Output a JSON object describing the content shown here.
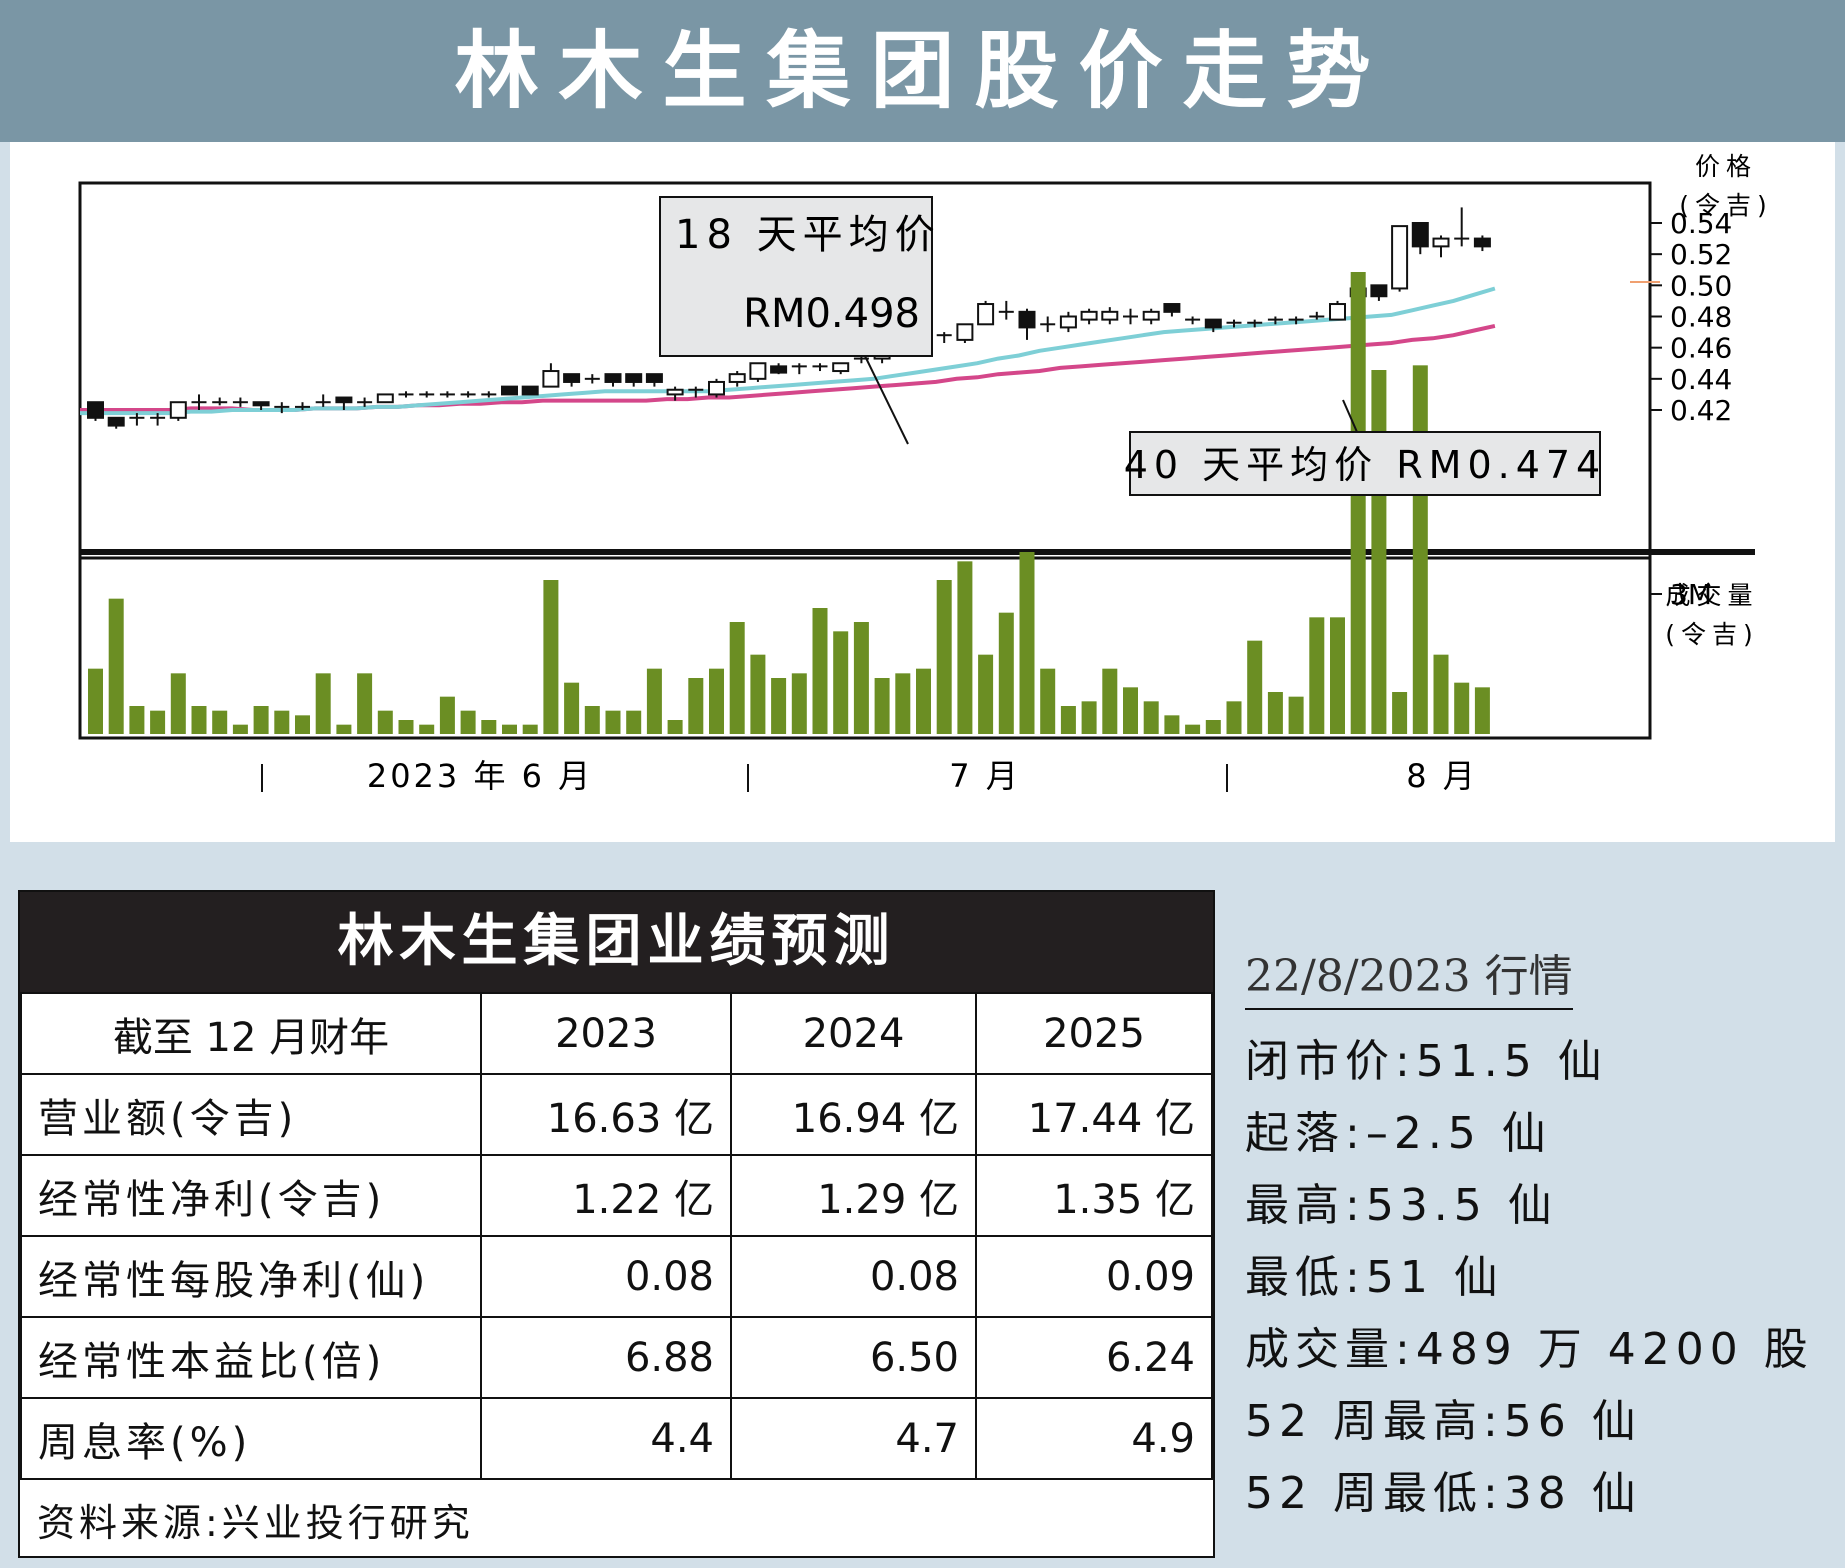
{
  "title": "林木生集团股价走势",
  "chart_data": {
    "type": "candlestick",
    "price_axis": {
      "label_line1": "价格",
      "label_line2": "(令吉)",
      "ticks": [
        "0.54",
        "0.52",
        "0.50",
        "0.48",
        "0.46",
        "0.44",
        "0.42"
      ],
      "ylim": [
        0.4,
        0.56
      ]
    },
    "volume_axis": {
      "label_line1": "成交量",
      "label_line2": "(令吉)",
      "ticks": [
        "3M"
      ]
    },
    "months": [
      "2023 年 6 月",
      "7 月",
      "8 月"
    ],
    "ma18": {
      "label_line1": "18 天平均价",
      "label_line2": "RM0.498"
    },
    "ma40": {
      "label": "40 天平均价 RM0.474"
    },
    "candles": [
      {
        "o": 0.425,
        "c": 0.415,
        "h": 0.425,
        "l": 0.413
      },
      {
        "o": 0.415,
        "c": 0.41,
        "h": 0.415,
        "l": 0.408
      },
      {
        "o": 0.415,
        "c": 0.415,
        "h": 0.418,
        "l": 0.41
      },
      {
        "o": 0.415,
        "c": 0.415,
        "h": 0.418,
        "l": 0.41
      },
      {
        "o": 0.415,
        "c": 0.425,
        "h": 0.425,
        "l": 0.413
      },
      {
        "o": 0.425,
        "c": 0.425,
        "h": 0.43,
        "l": 0.42
      },
      {
        "o": 0.425,
        "c": 0.425,
        "h": 0.428,
        "l": 0.423
      },
      {
        "o": 0.425,
        "c": 0.425,
        "h": 0.428,
        "l": 0.422
      },
      {
        "o": 0.425,
        "c": 0.423,
        "h": 0.425,
        "l": 0.42
      },
      {
        "o": 0.422,
        "c": 0.422,
        "h": 0.425,
        "l": 0.418
      },
      {
        "o": 0.422,
        "c": 0.422,
        "h": 0.425,
        "l": 0.42
      },
      {
        "o": 0.425,
        "c": 0.425,
        "h": 0.43,
        "l": 0.422
      },
      {
        "o": 0.428,
        "c": 0.425,
        "h": 0.428,
        "l": 0.42
      },
      {
        "o": 0.425,
        "c": 0.425,
        "h": 0.428,
        "l": 0.422
      },
      {
        "o": 0.425,
        "c": 0.43,
        "h": 0.43,
        "l": 0.425
      },
      {
        "o": 0.43,
        "c": 0.43,
        "h": 0.432,
        "l": 0.428
      },
      {
        "o": 0.43,
        "c": 0.43,
        "h": 0.432,
        "l": 0.428
      },
      {
        "o": 0.43,
        "c": 0.43,
        "h": 0.432,
        "l": 0.428
      },
      {
        "o": 0.43,
        "c": 0.43,
        "h": 0.432,
        "l": 0.428
      },
      {
        "o": 0.43,
        "c": 0.43,
        "h": 0.432,
        "l": 0.428
      },
      {
        "o": 0.435,
        "c": 0.43,
        "h": 0.435,
        "l": 0.43
      },
      {
        "o": 0.435,
        "c": 0.43,
        "h": 0.435,
        "l": 0.43
      },
      {
        "o": 0.435,
        "c": 0.445,
        "h": 0.45,
        "l": 0.435
      },
      {
        "o": 0.443,
        "c": 0.438,
        "h": 0.443,
        "l": 0.435
      },
      {
        "o": 0.44,
        "c": 0.44,
        "h": 0.443,
        "l": 0.437
      },
      {
        "o": 0.443,
        "c": 0.438,
        "h": 0.443,
        "l": 0.435
      },
      {
        "o": 0.443,
        "c": 0.438,
        "h": 0.443,
        "l": 0.435
      },
      {
        "o": 0.443,
        "c": 0.438,
        "h": 0.443,
        "l": 0.435
      },
      {
        "o": 0.43,
        "c": 0.433,
        "h": 0.435,
        "l": 0.426
      },
      {
        "o": 0.433,
        "c": 0.433,
        "h": 0.435,
        "l": 0.428
      },
      {
        "o": 0.43,
        "c": 0.438,
        "h": 0.44,
        "l": 0.428
      },
      {
        "o": 0.438,
        "c": 0.443,
        "h": 0.445,
        "l": 0.435
      },
      {
        "o": 0.44,
        "c": 0.45,
        "h": 0.45,
        "l": 0.438
      },
      {
        "o": 0.448,
        "c": 0.444,
        "h": 0.45,
        "l": 0.443
      },
      {
        "o": 0.448,
        "c": 0.448,
        "h": 0.45,
        "l": 0.443
      },
      {
        "o": 0.448,
        "c": 0.448,
        "h": 0.45,
        "l": 0.445
      },
      {
        "o": 0.445,
        "c": 0.45,
        "h": 0.45,
        "l": 0.443
      },
      {
        "o": 0.453,
        "c": 0.453,
        "h": 0.458,
        "l": 0.45
      },
      {
        "o": 0.453,
        "c": 0.458,
        "h": 0.46,
        "l": 0.45
      },
      {
        "o": 0.458,
        "c": 0.465,
        "h": 0.468,
        "l": 0.455
      },
      {
        "o": 0.468,
        "c": 0.468,
        "h": 0.47,
        "l": 0.463
      },
      {
        "o": 0.468,
        "c": 0.468,
        "h": 0.47,
        "l": 0.463
      },
      {
        "o": 0.465,
        "c": 0.475,
        "h": 0.475,
        "l": 0.463
      },
      {
        "o": 0.475,
        "c": 0.488,
        "h": 0.49,
        "l": 0.475
      },
      {
        "o": 0.483,
        "c": 0.483,
        "h": 0.49,
        "l": 0.478
      },
      {
        "o": 0.483,
        "c": 0.473,
        "h": 0.485,
        "l": 0.465
      },
      {
        "o": 0.475,
        "c": 0.475,
        "h": 0.48,
        "l": 0.47
      },
      {
        "o": 0.473,
        "c": 0.48,
        "h": 0.483,
        "l": 0.47
      },
      {
        "o": 0.478,
        "c": 0.483,
        "h": 0.485,
        "l": 0.475
      },
      {
        "o": 0.478,
        "c": 0.483,
        "h": 0.486,
        "l": 0.475
      },
      {
        "o": 0.48,
        "c": 0.48,
        "h": 0.485,
        "l": 0.475
      },
      {
        "o": 0.478,
        "c": 0.483,
        "h": 0.485,
        "l": 0.475
      },
      {
        "o": 0.488,
        "c": 0.483,
        "h": 0.488,
        "l": 0.48
      },
      {
        "o": 0.478,
        "c": 0.478,
        "h": 0.48,
        "l": 0.475
      },
      {
        "o": 0.478,
        "c": 0.473,
        "h": 0.478,
        "l": 0.47
      },
      {
        "o": 0.476,
        "c": 0.476,
        "h": 0.478,
        "l": 0.473
      },
      {
        "o": 0.476,
        "c": 0.476,
        "h": 0.478,
        "l": 0.473
      },
      {
        "o": 0.478,
        "c": 0.478,
        "h": 0.48,
        "l": 0.475
      },
      {
        "o": 0.478,
        "c": 0.478,
        "h": 0.48,
        "l": 0.475
      },
      {
        "o": 0.48,
        "c": 0.48,
        "h": 0.483,
        "l": 0.478
      },
      {
        "o": 0.478,
        "c": 0.488,
        "h": 0.49,
        "l": 0.478
      },
      {
        "o": 0.493,
        "c": 0.498,
        "h": 0.5,
        "l": 0.49
      },
      {
        "o": 0.5,
        "c": 0.493,
        "h": 0.5,
        "l": 0.49
      },
      {
        "o": 0.498,
        "c": 0.538,
        "h": 0.538,
        "l": 0.496
      },
      {
        "o": 0.54,
        "c": 0.525,
        "h": 0.54,
        "l": 0.52
      },
      {
        "o": 0.525,
        "c": 0.53,
        "h": 0.532,
        "l": 0.518
      },
      {
        "o": 0.53,
        "c": 0.53,
        "h": 0.55,
        "l": 0.525
      },
      {
        "o": 0.53,
        "c": 0.525,
        "h": 0.532,
        "l": 0.522
      }
    ],
    "ma18_values": [
      0.418,
      0.418,
      0.418,
      0.418,
      0.419,
      0.419,
      0.42,
      0.42,
      0.42,
      0.42,
      0.421,
      0.421,
      0.421,
      0.422,
      0.422,
      0.423,
      0.424,
      0.425,
      0.426,
      0.427,
      0.428,
      0.429,
      0.43,
      0.431,
      0.432,
      0.432,
      0.432,
      0.432,
      0.432,
      0.432,
      0.433,
      0.434,
      0.435,
      0.436,
      0.437,
      0.438,
      0.439,
      0.44,
      0.442,
      0.444,
      0.446,
      0.448,
      0.45,
      0.453,
      0.455,
      0.458,
      0.46,
      0.462,
      0.464,
      0.466,
      0.468,
      0.47,
      0.471,
      0.472,
      0.473,
      0.474,
      0.475,
      0.476,
      0.477,
      0.478,
      0.479,
      0.48,
      0.481,
      0.484,
      0.487,
      0.49,
      0.494,
      0.498
    ],
    "ma40_values": [
      0.42,
      0.42,
      0.42,
      0.42,
      0.421,
      0.421,
      0.421,
      0.42,
      0.42,
      0.42,
      0.421,
      0.421,
      0.421,
      0.422,
      0.422,
      0.423,
      0.423,
      0.424,
      0.424,
      0.425,
      0.425,
      0.426,
      0.426,
      0.426,
      0.426,
      0.426,
      0.426,
      0.427,
      0.427,
      0.428,
      0.428,
      0.429,
      0.43,
      0.431,
      0.432,
      0.433,
      0.434,
      0.435,
      0.436,
      0.437,
      0.438,
      0.44,
      0.441,
      0.443,
      0.444,
      0.445,
      0.447,
      0.448,
      0.449,
      0.45,
      0.451,
      0.452,
      0.453,
      0.454,
      0.455,
      0.456,
      0.457,
      0.458,
      0.459,
      0.46,
      0.461,
      0.462,
      0.463,
      0.465,
      0.466,
      0.468,
      0.471,
      0.474
    ],
    "volume_values": [
      1.4,
      2.9,
      0.6,
      0.5,
      1.3,
      0.6,
      0.5,
      0.2,
      0.6,
      0.5,
      0.4,
      1.3,
      0.2,
      1.3,
      0.5,
      0.3,
      0.2,
      0.8,
      0.5,
      0.3,
      0.2,
      0.2,
      3.3,
      1.1,
      0.6,
      0.5,
      0.5,
      1.4,
      0.3,
      1.2,
      1.4,
      2.4,
      1.7,
      1.2,
      1.3,
      2.7,
      2.2,
      2.4,
      1.2,
      1.3,
      1.4,
      3.3,
      3.7,
      1.7,
      2.6,
      3.9,
      1.4,
      0.6,
      0.7,
      1.4,
      1.0,
      0.7,
      0.4,
      0.2,
      0.3,
      0.7,
      2.0,
      0.9,
      0.8,
      2.5,
      2.5,
      9.9,
      7.8,
      0.9,
      7.9,
      1.7,
      1.1,
      1.0
    ]
  },
  "forecast": {
    "title": "林木生集团业绩预测",
    "header": [
      "截至 12 月财年",
      "2023",
      "2024",
      "2025"
    ],
    "rows": [
      [
        "营业额(令吉)",
        "16.63 亿",
        "16.94 亿",
        "17.44 亿"
      ],
      [
        "经常性净利(令吉)",
        "1.22 亿",
        "1.29 亿",
        "1.35 亿"
      ],
      [
        "经常性每股净利(仙)",
        "0.08",
        "0.08",
        "0.09"
      ],
      [
        "经常性本益比(倍)",
        "6.88",
        "6.50",
        "6.24"
      ],
      [
        "周息率(%)",
        "4.4",
        "4.7",
        "4.9"
      ]
    ],
    "source": "资料来源:兴业投行研究"
  },
  "market": {
    "date": "22/8/2023 行情",
    "rows": [
      "闭市价:51.5 仙",
      "起落:–2.5 仙",
      "最高:53.5 仙",
      "最低:51 仙",
      "成交量:489 万 4200 股",
      "52 周最高:56 仙",
      "52 周最低:38 仙"
    ]
  },
  "colors": {
    "title_bg": "#7a96a5",
    "ma18": "#7ecfd6",
    "ma40": "#d4478a",
    "volume": "#6b8e23",
    "page_bg": "#d2dfe8"
  }
}
